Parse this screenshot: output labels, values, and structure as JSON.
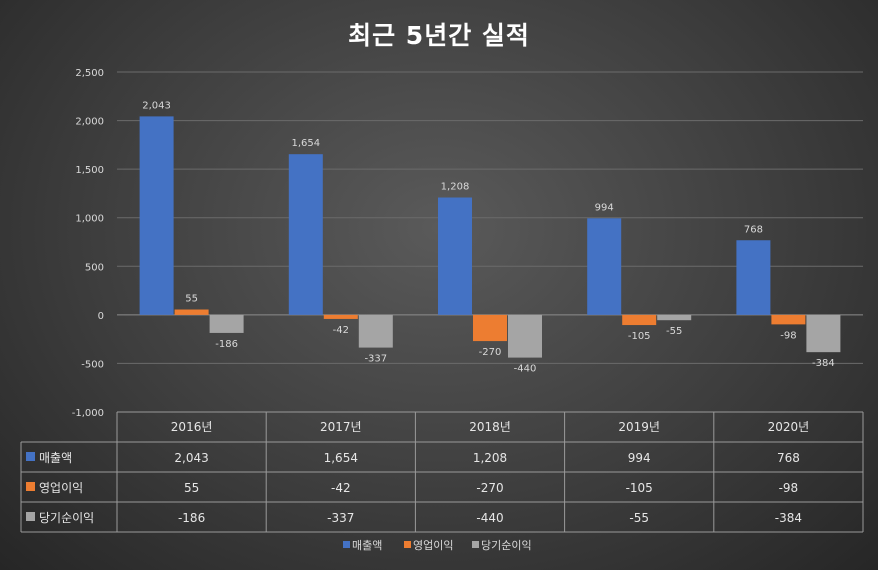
{
  "chart_data": {
    "type": "bar",
    "title": "최근 5년간 실적",
    "categories": [
      "2016년",
      "2017년",
      "2018년",
      "2019년",
      "2020년"
    ],
    "series": [
      {
        "name": "매출액",
        "color": "#4472c4",
        "values": [
          2043,
          1654,
          1208,
          994,
          768
        ],
        "labels": [
          "2,043",
          "1,654",
          "1,208",
          "994",
          "768"
        ]
      },
      {
        "name": "영업이익",
        "color": "#ed7d31",
        "values": [
          55,
          -42,
          -270,
          -105,
          -98
        ],
        "labels": [
          "55",
          "-42",
          "-270",
          "-105",
          "-98"
        ]
      },
      {
        "name": "당기순이익",
        "color": "#a5a5a5",
        "values": [
          -186,
          -337,
          -440,
          -55,
          -384
        ],
        "labels": [
          "-186",
          "-337",
          "-440",
          "-55",
          "-384"
        ]
      }
    ],
    "ylim": [
      -1000,
      2500
    ],
    "yticks": [
      2500,
      2000,
      1500,
      1000,
      500,
      0,
      -500,
      -1000
    ],
    "ytick_labels": [
      "2,500",
      "2,000",
      "1,500",
      "1,000",
      "500",
      "0",
      "-500",
      "-1,000"
    ],
    "grid": true,
    "data_table": true,
    "legend_position": "bottom"
  }
}
